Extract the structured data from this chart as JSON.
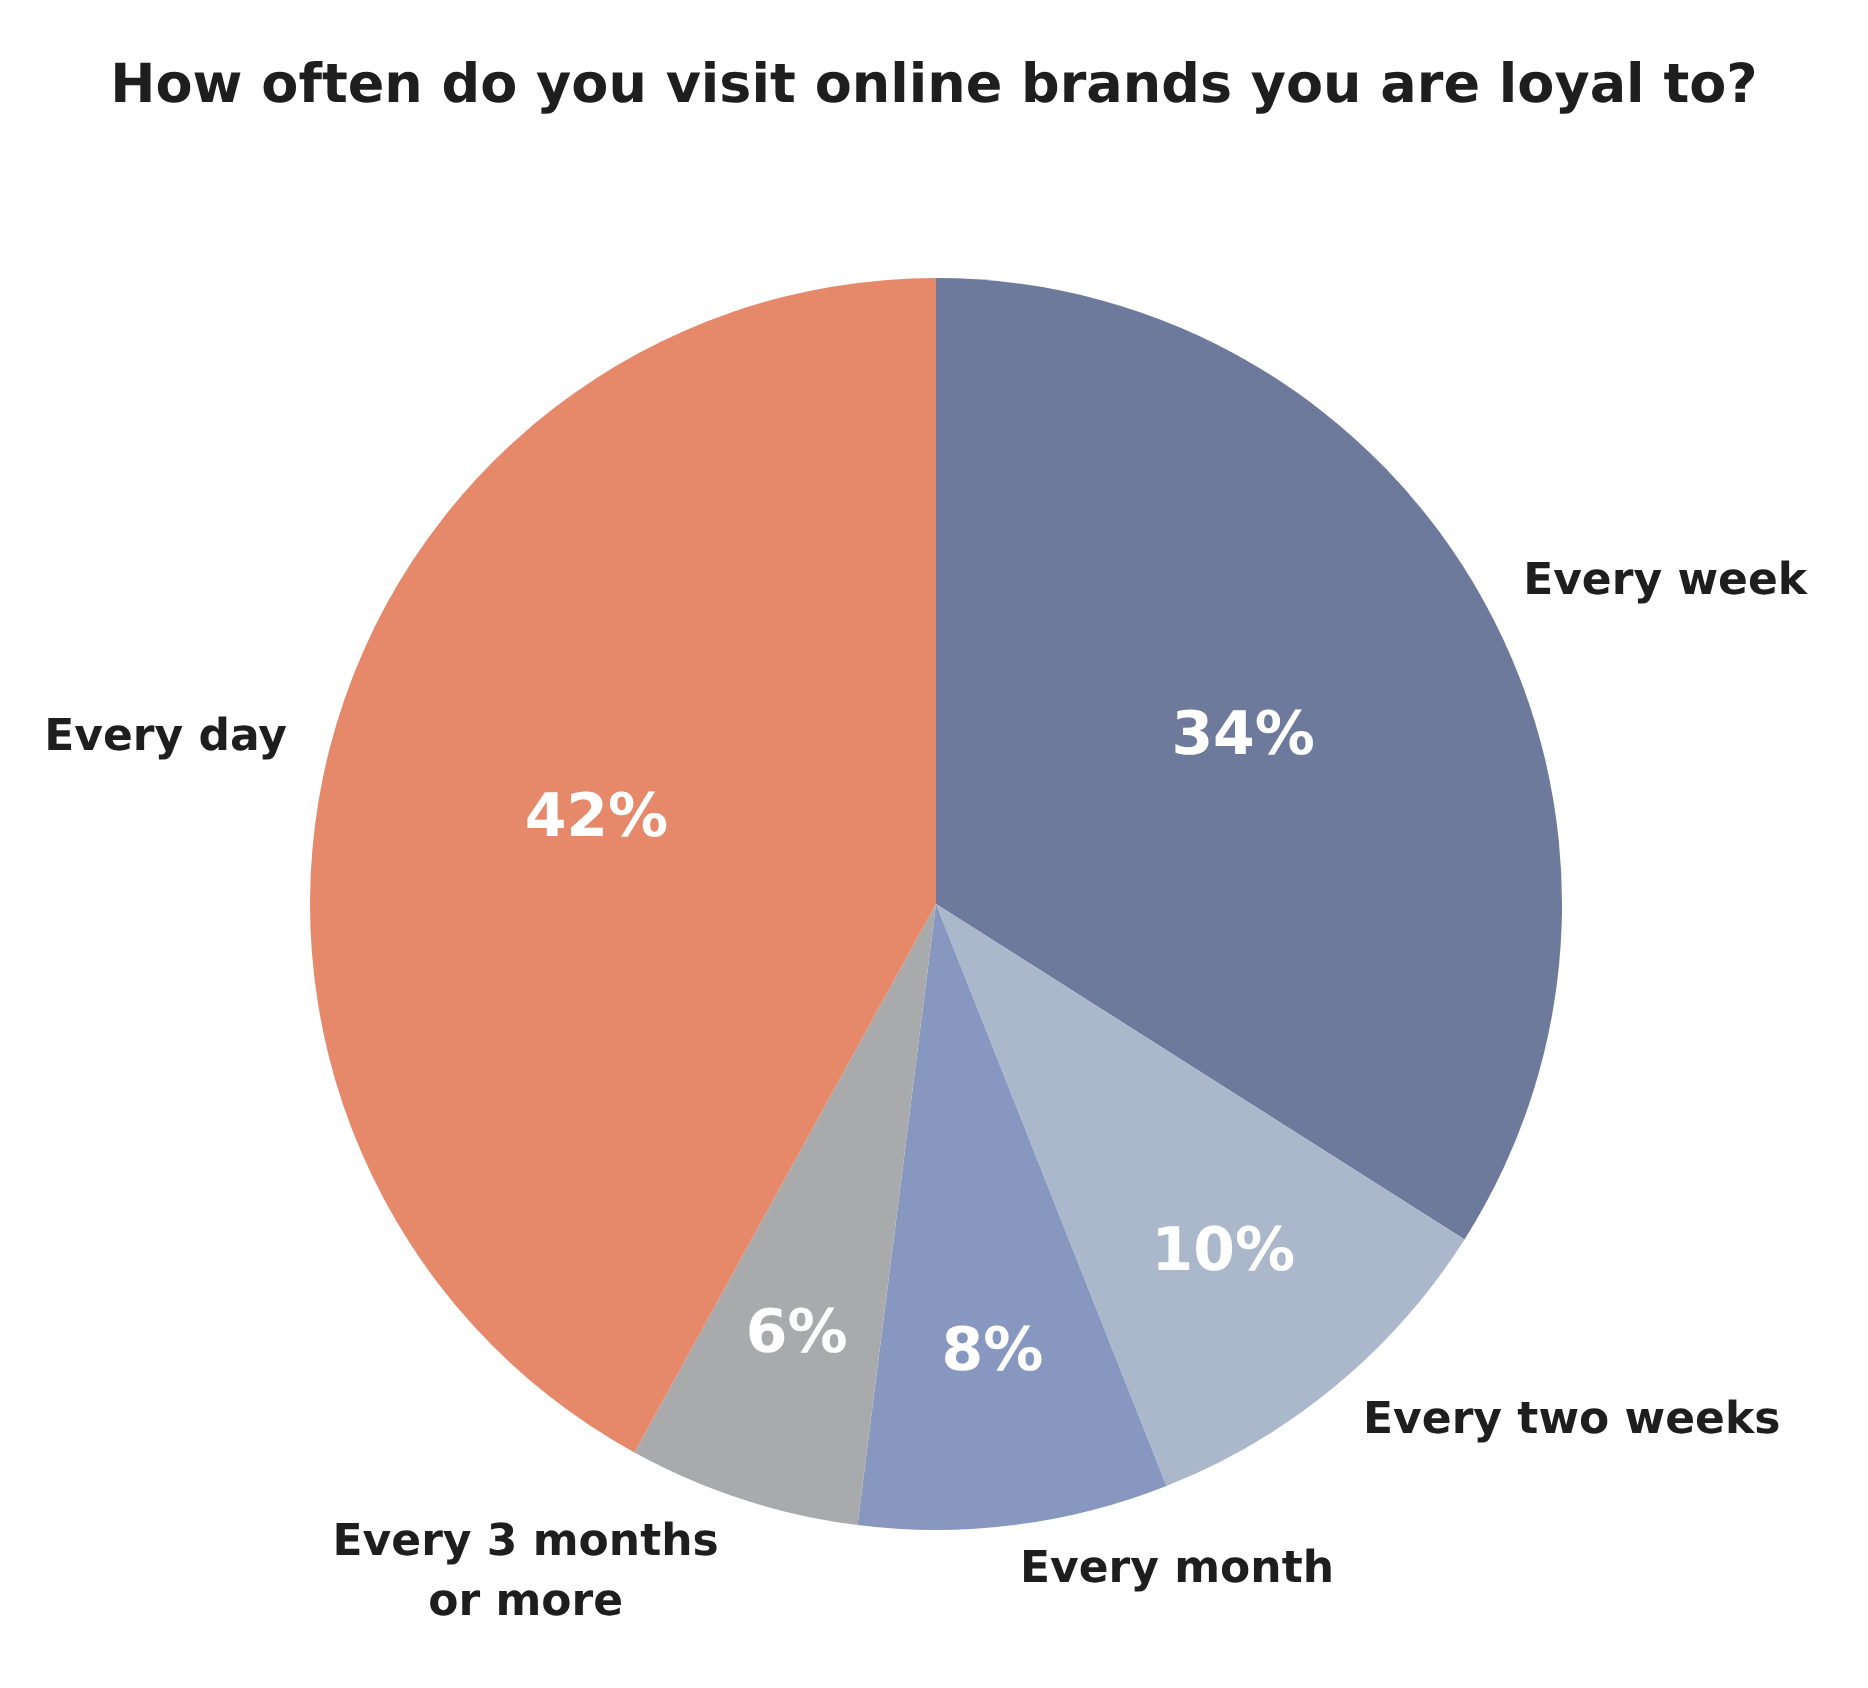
{
  "chart_data": {
    "type": "pie",
    "title": "How often do you visit online brands you are loyal to?",
    "categories": [
      "Every week",
      "Every two weeks",
      "Every month",
      "Every 3 months or more",
      "Every day"
    ],
    "values": [
      34,
      10,
      8,
      6,
      42
    ],
    "colors": [
      "#6d7a9c",
      "#abb7cb",
      "#8797c0",
      "#a9aaab",
      "#e6886a"
    ],
    "value_labels": [
      "34%",
      "10%",
      "8%",
      "6%",
      "42%"
    ]
  }
}
